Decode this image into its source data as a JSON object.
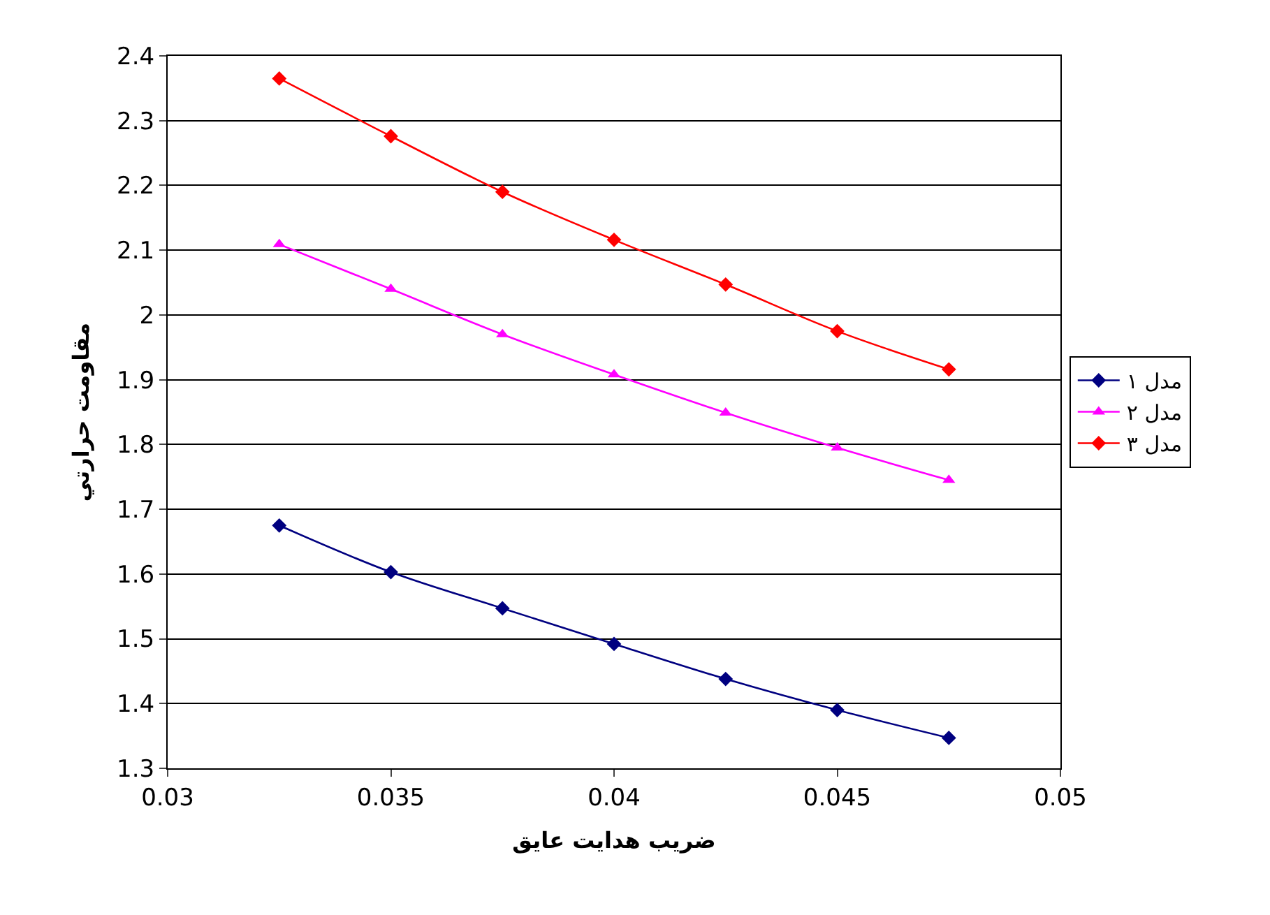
{
  "chart_data": {
    "type": "line",
    "xlabel": "ضريب هدايت عايق",
    "ylabel": "مقاومت حرارتي",
    "x": [
      0.0325,
      0.035,
      0.0375,
      0.04,
      0.0425,
      0.045,
      0.0475
    ],
    "series": [
      {
        "name": "مدل ١",
        "color": "#000080",
        "marker": "diamond",
        "values": [
          1.675,
          1.603,
          1.547,
          1.492,
          1.438,
          1.39,
          1.347
        ]
      },
      {
        "name": "مدل ٢",
        "color": "#ff00ff",
        "marker": "triangle",
        "values": [
          2.109,
          2.04,
          1.97,
          1.908,
          1.849,
          1.795,
          1.745
        ]
      },
      {
        "name": "مدل ٣",
        "color": "#ff0000",
        "marker": "diamond",
        "values": [
          2.365,
          2.276,
          2.19,
          2.116,
          2.047,
          1.975,
          1.916
        ]
      }
    ],
    "xlim": [
      0.03,
      0.05
    ],
    "xticks": [
      0.03,
      0.035,
      0.04,
      0.045,
      0.05
    ],
    "ylim": [
      1.3,
      2.4
    ],
    "yticks": [
      1.3,
      1.4,
      1.5,
      1.6,
      1.7,
      1.8,
      1.9,
      2,
      2.1,
      2.2,
      2.3,
      2.4
    ],
    "grid": "y",
    "legend": "right",
    "line_style": "solid"
  }
}
